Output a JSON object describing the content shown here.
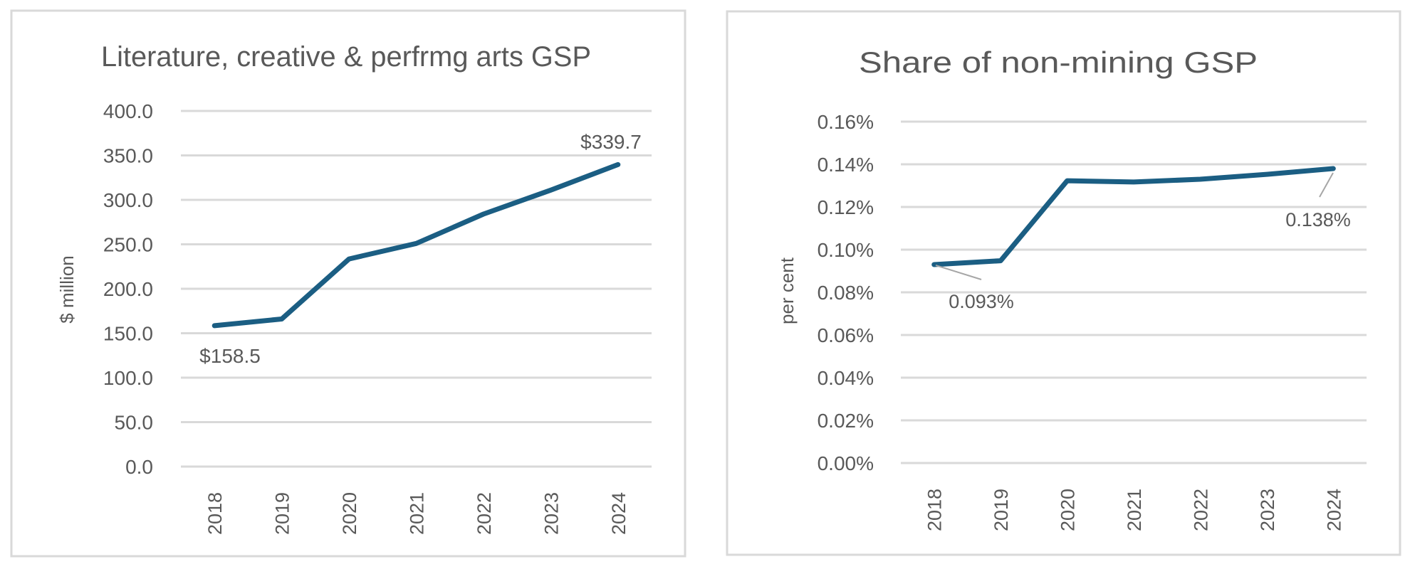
{
  "colors": {
    "series_line": "#1b5e83",
    "gridline": "#d9d9d9",
    "text": "#595959",
    "panel_border": "#d9d9d9",
    "leader_line": "#a6a6a6"
  },
  "chart_data": [
    {
      "type": "line",
      "title": "Literature, creative & perfrmg arts GSP",
      "xlabel": "",
      "ylabel": "$ million",
      "categories": [
        "2018",
        "2019",
        "2020",
        "2021",
        "2022",
        "2023",
        "2024"
      ],
      "series": [
        {
          "name": "Literature, creative & perfrmg arts GSP",
          "values": [
            158.5,
            166.0,
            233.5,
            251.0,
            284.0,
            311.0,
            339.7
          ]
        }
      ],
      "ylim": [
        0,
        400
      ],
      "yticks": [
        0,
        50,
        100,
        150,
        200,
        250,
        300,
        350,
        400
      ],
      "ytick_labels": [
        "0.0",
        "50.0",
        "100.0",
        "150.0",
        "200.0",
        "250.0",
        "300.0",
        "350.0",
        "400.0"
      ],
      "grid": true,
      "legend": "none",
      "annotations": [
        {
          "category": "2018",
          "text": "$158.5"
        },
        {
          "category": "2024",
          "text": "$339.7"
        }
      ]
    },
    {
      "type": "line",
      "title": "Share of non-mining GSP",
      "xlabel": "",
      "ylabel": "per cent",
      "categories": [
        "2018",
        "2019",
        "2020",
        "2021",
        "2022",
        "2023",
        "2024"
      ],
      "series": [
        {
          "name": "Share of non-mining GSP",
          "values": [
            0.093,
            0.0948,
            0.1323,
            0.1317,
            0.133,
            0.1353,
            0.138
          ]
        }
      ],
      "ylim": [
        0,
        0.16
      ],
      "yticks": [
        0,
        0.02,
        0.04,
        0.06,
        0.08,
        0.1,
        0.12,
        0.14,
        0.16
      ],
      "ytick_labels": [
        "0.00%",
        "0.02%",
        "0.04%",
        "0.06%",
        "0.08%",
        "0.10%",
        "0.12%",
        "0.14%",
        "0.16%"
      ],
      "grid": true,
      "legend": "none",
      "annotations": [
        {
          "category": "2018",
          "text": "0.093%"
        },
        {
          "category": "2024",
          "text": "0.138%"
        }
      ]
    }
  ]
}
